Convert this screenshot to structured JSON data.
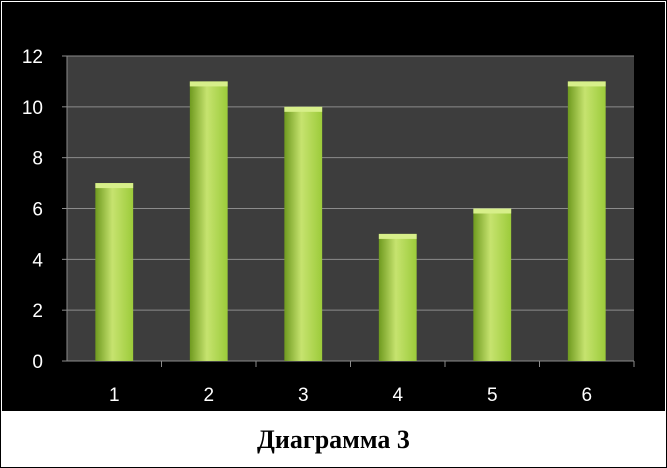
{
  "caption": "Диаграмма 3",
  "chart_data": {
    "type": "bar",
    "categories": [
      "1",
      "2",
      "3",
      "4",
      "5",
      "6"
    ],
    "values": [
      7,
      11,
      10,
      5,
      6,
      11
    ],
    "title": "",
    "xlabel": "",
    "ylabel": "",
    "ylim": [
      0,
      12
    ],
    "yticks": [
      0,
      2,
      4,
      6,
      8,
      10,
      12
    ],
    "grid": true,
    "legend": "none",
    "colors": {
      "background": "#000000",
      "plot_area": "#3d3d3d",
      "gridline": "#8c8c8c",
      "bar_light": "#c6e36f",
      "bar_mid": "#9ccb3a",
      "bar_dark": "#6f9a1f",
      "bar_top": "#d7ef8a",
      "text": "#ffffff"
    }
  }
}
